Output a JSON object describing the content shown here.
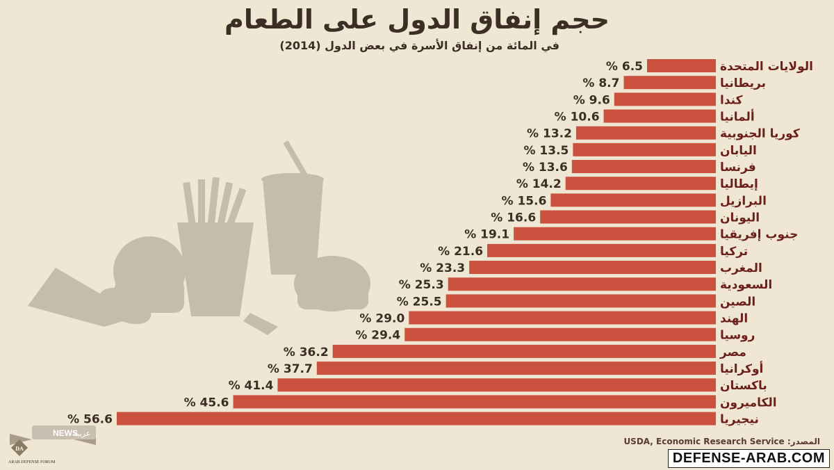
{
  "header": {
    "title": "حجم إنفاق الدول على الطعام",
    "subtitle": "في المائة من إنفاق الأسرة في بعض الدول (2014)"
  },
  "footer": {
    "source": "المصدر: USDA, Economic Research Service",
    "site": "DEFENSE-ARAB.COM"
  },
  "logo": {
    "badge_text": "NEWS",
    "badge_text2": "عربية",
    "org": "ARAB DEFENSE FORUM",
    "mark": "DA"
  },
  "colors": {
    "bar": "#cc5240",
    "label": "#6b1f1a",
    "value": "#3b2e25",
    "background": "#efe6d3",
    "silhouette": "#b4ab9b"
  },
  "chart_data": {
    "type": "bar",
    "orientation": "horizontal",
    "value_suffix": "%",
    "categories": [
      "الولايات المتحدة",
      "بريطانيا",
      "كندا",
      "ألمانيا",
      "كوريا الجنوبية",
      "اليابان",
      "فرنسا",
      "إيطاليا",
      "البرازيل",
      "اليونان",
      "جنوب إفريقيا",
      "تركيا",
      "المغرب",
      "السعودية",
      "الصين",
      "الهند",
      "روسيا",
      "مصر",
      "أوكرانيا",
      "باكستان",
      "الكاميرون",
      "نيجيريا"
    ],
    "values": [
      6.5,
      8.7,
      9.6,
      10.6,
      13.2,
      13.5,
      13.6,
      14.2,
      15.6,
      16.6,
      19.1,
      21.6,
      23.3,
      25.3,
      25.5,
      29.0,
      29.4,
      36.2,
      37.7,
      41.4,
      45.6,
      56.6
    ],
    "value_labels": [
      "6.5",
      "8.7",
      "9.6",
      "10.6",
      "13.2",
      "13.5",
      "13.6",
      "14.2",
      "15.6",
      "16.6",
      "19.1",
      "21.6",
      "23.3",
      "25.3",
      "25.5",
      "29.0",
      "29.4",
      "36.2",
      "37.7",
      "41.4",
      "45.6",
      "56.6"
    ],
    "grid": false,
    "legend": "none"
  }
}
